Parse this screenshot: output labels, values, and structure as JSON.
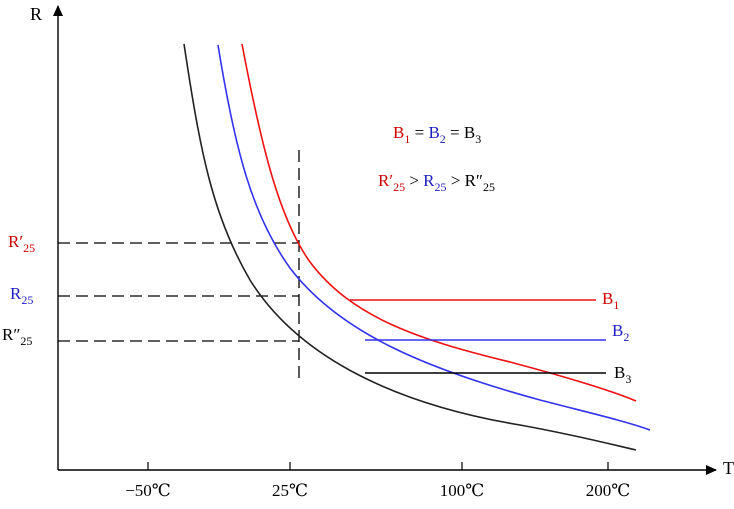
{
  "axes": {
    "y_label": "R",
    "x_label": "T",
    "x_ticks": [
      "−50℃",
      "25℃",
      "100℃",
      "200℃"
    ]
  },
  "left_labels": [
    {
      "main": "R′",
      "sub": "25",
      "color": "#cc0000"
    },
    {
      "main": "R",
      "sub": "25",
      "color": "#1f1fbf"
    },
    {
      "main": "R″",
      "sub": "25",
      "color": "#000000"
    }
  ],
  "equation_1": {
    "b1": "B",
    "b1_sub": "1",
    "eq1": " = ",
    "b2": "B",
    "b2_sub": "2",
    "eq2": " = ",
    "b3": "B",
    "b3_sub": "3",
    "colors": {
      "b1": "#cc0000",
      "b2": "#1f1fbf",
      "b3": "#000000"
    }
  },
  "equation_2": {
    "r1": "R′",
    "r1_sub": "25",
    "gt1": " > ",
    "r2": "R",
    "r2_sub": "25",
    "gt2": " > ",
    "r3": "R″",
    "r3_sub": "25",
    "colors": {
      "r1": "#cc0000",
      "r2": "#1f1fbf",
      "r3": "#000000"
    }
  },
  "curves": [
    {
      "name": "B",
      "sub": "1",
      "color": "#ee1111"
    },
    {
      "name": "B",
      "sub": "2",
      "color": "#3333ee"
    },
    {
      "name": "B",
      "sub": "3",
      "color": "#000000"
    }
  ]
}
